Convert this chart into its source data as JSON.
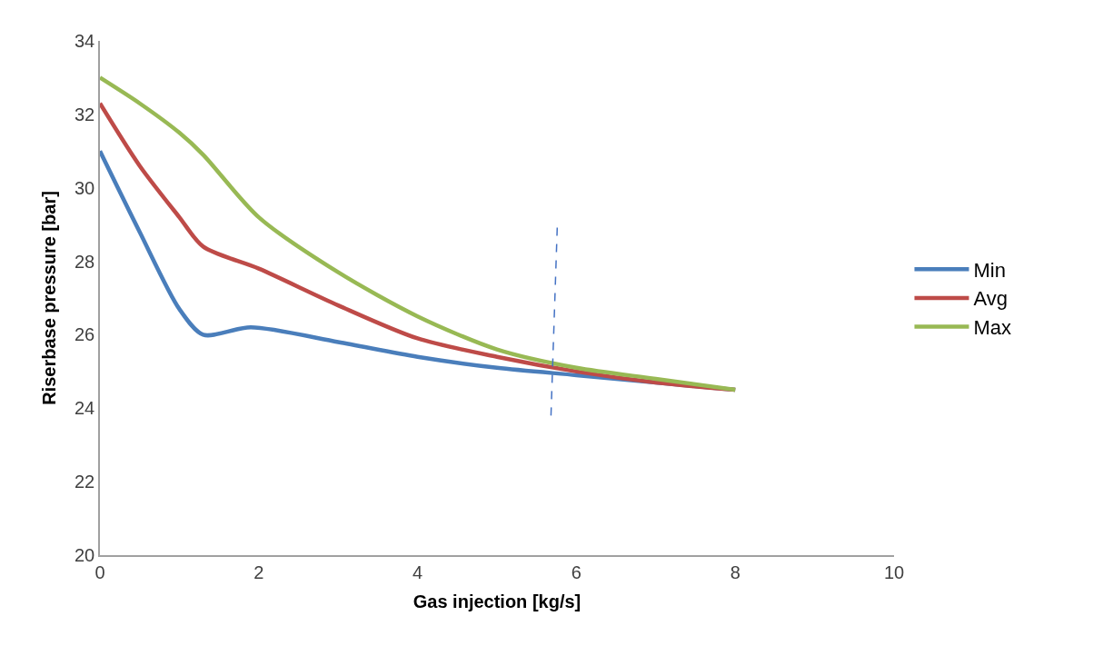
{
  "chart_data": {
    "type": "line",
    "xlabel": "Gas injection [kg/s]",
    "ylabel": "Riserbase pressure [bar]",
    "xlim": [
      0,
      10
    ],
    "xticks": [
      0,
      2,
      4,
      6,
      8,
      10
    ],
    "ylim": [
      20,
      34
    ],
    "yticks": [
      20,
      22,
      24,
      26,
      28,
      30,
      32,
      34
    ],
    "legend": "right",
    "marker": "none",
    "series": [
      {
        "name": "Min",
        "color": "#4a7ebb",
        "x": [
          0,
          0.5,
          1,
          1.3,
          1.9,
          3,
          4,
          5,
          6,
          7,
          8
        ],
        "values": [
          31,
          28.8,
          26.7,
          26,
          26.2,
          25.8,
          25.4,
          25.1,
          24.9,
          24.7,
          24.5
        ]
      },
      {
        "name": "Avg",
        "color": "#be4b48",
        "x": [
          0,
          0.5,
          1,
          1.3,
          2,
          3,
          4,
          5,
          6,
          7,
          8
        ],
        "values": [
          32.3,
          30.6,
          29.2,
          28.4,
          27.8,
          26.8,
          25.9,
          25.4,
          25.0,
          24.7,
          24.5
        ]
      },
      {
        "name": "Max",
        "color": "#98b954",
        "x": [
          0,
          0.5,
          1,
          1.3,
          2,
          3,
          4,
          5,
          6,
          7,
          8
        ],
        "values": [
          33,
          32.3,
          31.5,
          30.9,
          29.2,
          27.7,
          26.5,
          25.6,
          25.1,
          24.8,
          24.5
        ]
      },
      {
        "color": "#4472c4",
        "line_style": "dashed",
        "x": [
          5.68,
          5.76
        ],
        "values": [
          23.8,
          29
        ]
      }
    ]
  }
}
